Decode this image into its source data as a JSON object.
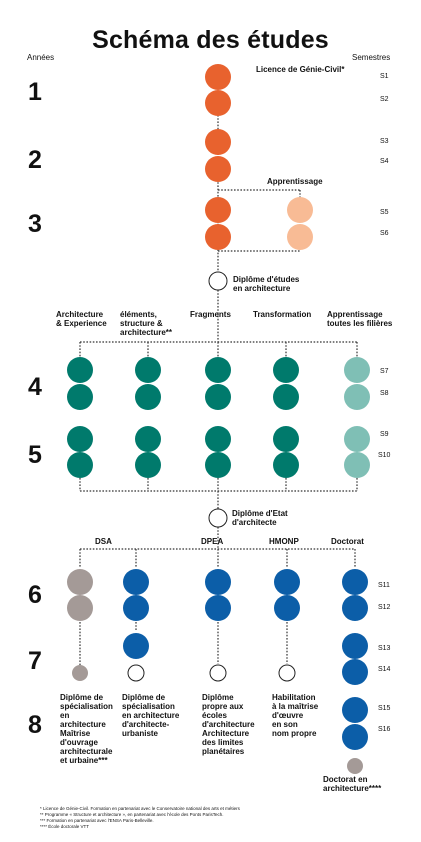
{
  "title": "Schéma des études",
  "header": {
    "years_label": "Années",
    "semesters_label": "Semestres"
  },
  "years": [
    "1",
    "2",
    "3",
    "4",
    "5",
    "6",
    "7",
    "8"
  ],
  "semesters": [
    "S1",
    "S2",
    "S3",
    "S4",
    "S5",
    "S6",
    "S7",
    "S8",
    "S9",
    "S10",
    "S11",
    "S12",
    "S13",
    "S14",
    "S15",
    "S16"
  ],
  "colors": {
    "licence": "#e8622e",
    "apprentissage_l": "#f8bb95",
    "master": "#007a6c",
    "apprentissage_m": "#7fbfb5",
    "dsa": "#a49a97",
    "post": "#0c5ea8",
    "line": "#333333"
  },
  "labels": {
    "licence": "Licence de Génie-Civil*",
    "apprentissage": "Apprentissage",
    "diplome_etudes": [
      "Diplôme d'études",
      "en architecture"
    ],
    "diplome_etat": [
      "Diplôme d'Etat",
      "d'architecte"
    ],
    "doctorat_final": [
      "Doctorat en",
      "architecture****"
    ]
  },
  "master_tracks": [
    [
      "Architecture",
      "& Experience"
    ],
    [
      "éléments,",
      "structure &",
      "architecture**"
    ],
    [
      "Fragments"
    ],
    [
      "Transformation"
    ],
    [
      "Apprentissage",
      "toutes les filières"
    ]
  ],
  "post_tracks": [
    "DSA",
    "DPEA",
    "HMONP",
    "Doctorat"
  ],
  "outcomes": [
    [
      "Diplôme de",
      "spécialisation",
      "en",
      "architecture",
      "Maîtrise",
      "d'ouvrage",
      "architecturale",
      "et urbaine***"
    ],
    [
      "Diplôme de",
      "spécialisation",
      "en architecture",
      "d'architecte-",
      "urbaniste"
    ],
    [
      "Diplôme",
      "propre aux",
      "écoles",
      "d'architecture",
      "Architecture",
      "des limites",
      "planétaires"
    ],
    [
      "Habilitation",
      "à la maîtrise",
      "d'œuvre",
      "en son",
      "nom propre"
    ]
  ],
  "footnotes": [
    "* Licence de Génie-Civil. Formation en partenariat avec le Conservatoire national des arts et métiers",
    "** Programme « Structure et architecture », en partenariat avec l'école des Ponts ParisTech.",
    "*** Formation en partenariat avec l'ENSA Paris-Belleville.",
    "**** École doctorale VTT"
  ]
}
